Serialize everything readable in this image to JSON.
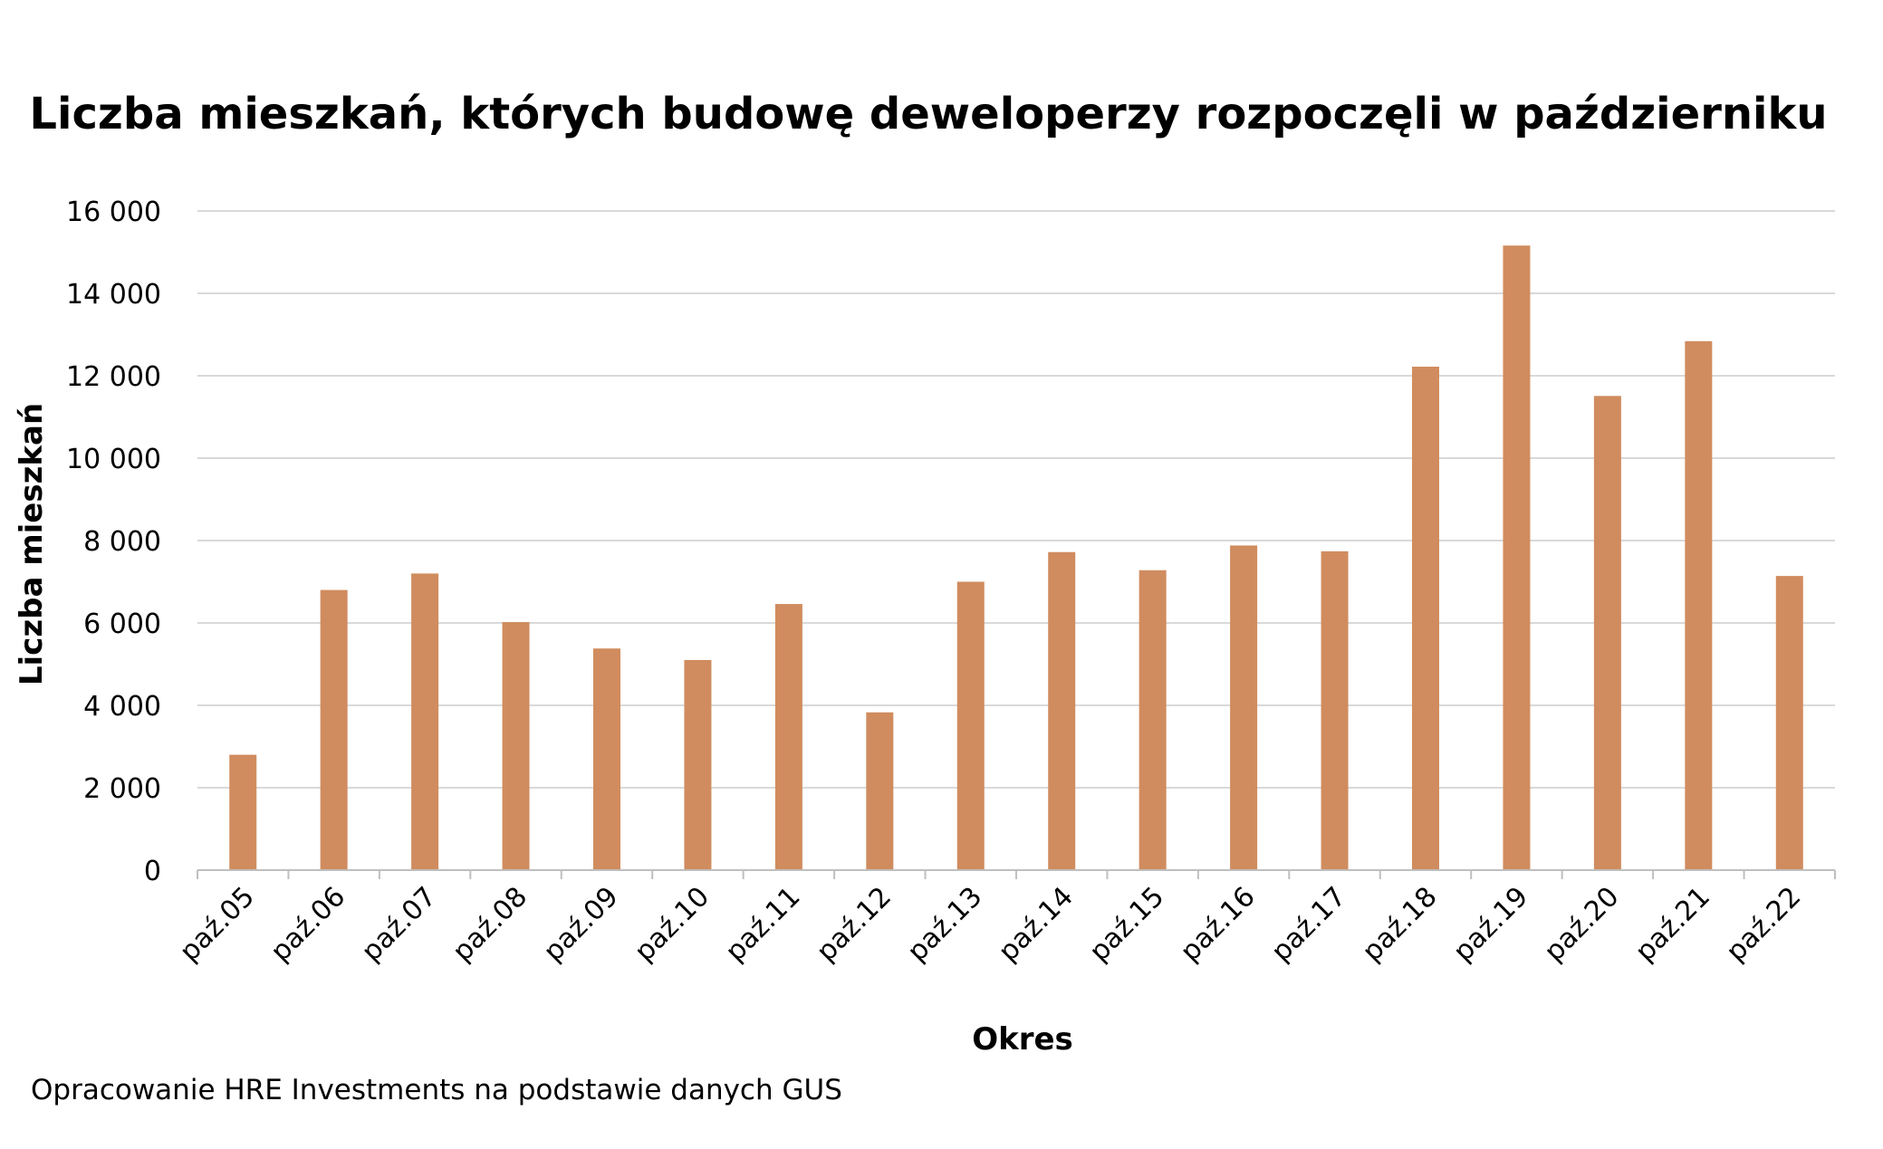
{
  "chart_data": {
    "type": "bar",
    "title": "Liczba mieszkań, których budowę deweloperzy rozpoczęli w październiku",
    "xlabel": "Okres",
    "ylabel": "Liczba mieszkań",
    "categories": [
      "paź.05",
      "paź.06",
      "paź.07",
      "paź.08",
      "paź.09",
      "paź.10",
      "paź.11",
      "paź.12",
      "paź.13",
      "paź.14",
      "paź.15",
      "paź.16",
      "paź.17",
      "paź.18",
      "paź.19",
      "paź.20",
      "paź.21",
      "paź.22"
    ],
    "values": [
      2800,
      6800,
      7200,
      6020,
      5380,
      5100,
      6460,
      3830,
      7000,
      7720,
      7280,
      7880,
      7740,
      12220,
      15160,
      11510,
      12840,
      7140
    ],
    "ylim": [
      0,
      16000
    ],
    "yticks": [
      0,
      2000,
      4000,
      6000,
      8000,
      10000,
      12000,
      14000,
      16000
    ],
    "ytick_labels": [
      "0",
      "2 000",
      "4 000",
      "6 000",
      "8 000",
      "10 000",
      "12 000",
      "14 000",
      "16 000"
    ],
    "grid": true,
    "legend": "none",
    "bar_color": "#D08C5E",
    "grid_color": "#D9D9D9"
  },
  "footer": {
    "source": "Opracowanie HRE Investments na podstawie danych GUS"
  }
}
